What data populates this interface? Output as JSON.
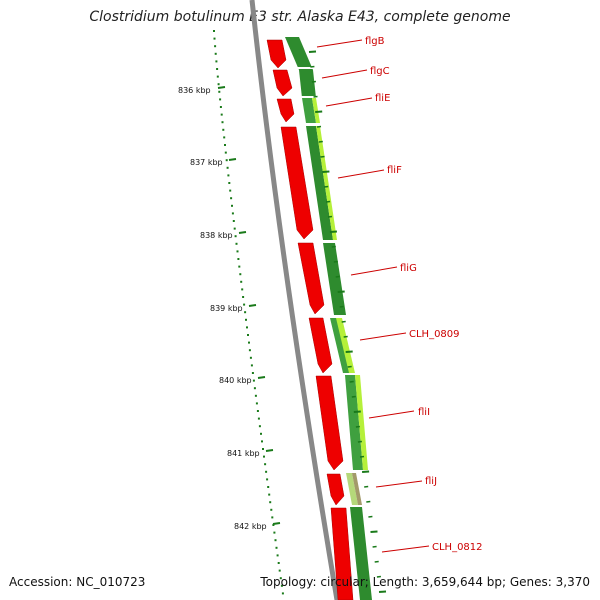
{
  "title": "Clostridium botulinum E3 str. Alaska E43, complete genome",
  "accession": "Accession: NC_010723",
  "summary": "Topology: circular; Length: 3,659,644 bp; Genes: 3,370",
  "colors": {
    "backbone": "#888888",
    "gene": "#ee0000",
    "tick": "#1a7a1a",
    "label": "#cc0000",
    "track_dark": "#2e8b2e",
    "track_light": "#b5f03a"
  },
  "scale_labels": [
    "836 kbp",
    "837 kbp",
    "838 kbp",
    "839 kbp",
    "840 kbp",
    "841 kbp",
    "842 kbp"
  ],
  "genes": [
    {
      "name": "flgB"
    },
    {
      "name": "flgC"
    },
    {
      "name": "fliE"
    },
    {
      "name": "fliF"
    },
    {
      "name": "fliG"
    },
    {
      "name": "CLH_0809"
    },
    {
      "name": "fliI"
    },
    {
      "name": "fliJ"
    },
    {
      "name": "CLH_0812"
    }
  ]
}
